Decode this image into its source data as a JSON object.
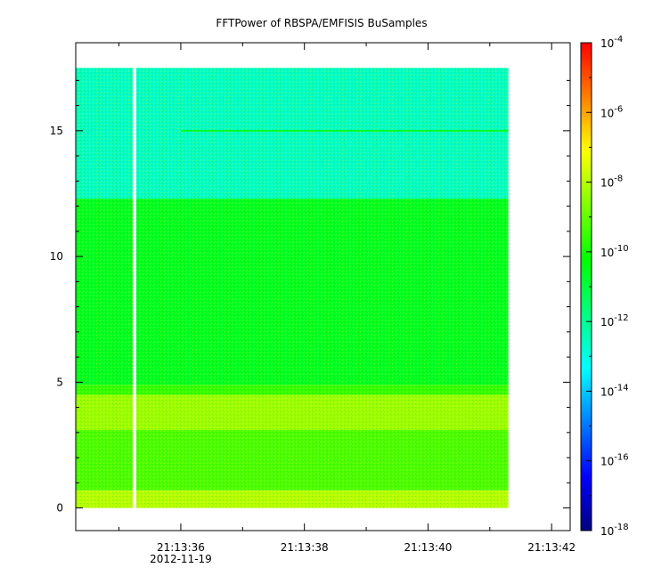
{
  "chart_data": {
    "type": "heatmap",
    "title": "FFTPower of RBSPA/EMFISIS  BuSamples",
    "xlabel": "",
    "ylabel": "",
    "x_axis": {
      "ticks": [
        {
          "label": "21:13:36",
          "sublabel": "2012-11-19",
          "t": 36
        },
        {
          "label": "21:13:38",
          "t": 38
        },
        {
          "label": "21:13:40",
          "t": 40
        },
        {
          "label": "21:13:42",
          "t": 42
        }
      ],
      "minor_ticks": [
        35,
        37,
        39,
        41
      ],
      "range_seconds": [
        34.3,
        42.3
      ]
    },
    "y_axis": {
      "ticks": [
        0,
        5,
        10,
        15
      ],
      "minor_ticks": [
        1,
        2,
        3,
        4,
        6,
        7,
        8,
        9,
        11,
        12,
        13,
        14,
        16,
        17
      ],
      "range": [
        -0.9,
        18.5
      ]
    },
    "colorbar": {
      "scale": "log",
      "range": [
        1e-18,
        0.0001
      ],
      "tick_exponents": [
        -4,
        -6,
        -8,
        -10,
        -12,
        -14,
        -16,
        -18
      ],
      "colors": [
        "#00007f",
        "#0000ff",
        "#007fff",
        "#00ffff",
        "#00ff7f",
        "#00ff00",
        "#7fff00",
        "#ffff00",
        "#ff7f00",
        "#ff0000"
      ]
    },
    "data_extent": {
      "t_start": 34.3,
      "t_end": 41.3,
      "f_min": 0.0,
      "f_max": 17.5
    },
    "gap": {
      "t": 35.25
    },
    "bands": [
      {
        "f_from": 12.3,
        "f_to": 17.5,
        "log_power": -12.6
      },
      {
        "f_from": 4.9,
        "f_to": 12.3,
        "log_power": -10.6
      },
      {
        "f_from": 4.5,
        "f_to": 4.9,
        "log_power": -9.6
      },
      {
        "f_from": 3.1,
        "f_to": 4.5,
        "log_power": -8.3
      },
      {
        "f_from": 0.7,
        "f_to": 3.1,
        "log_power": -9.3
      },
      {
        "f_from": 0.0,
        "f_to": 0.7,
        "log_power": -8.0
      }
    ],
    "lines": [
      {
        "f": 15.0,
        "log_power": -10.7
      }
    ],
    "grid": false,
    "legend": "none"
  }
}
